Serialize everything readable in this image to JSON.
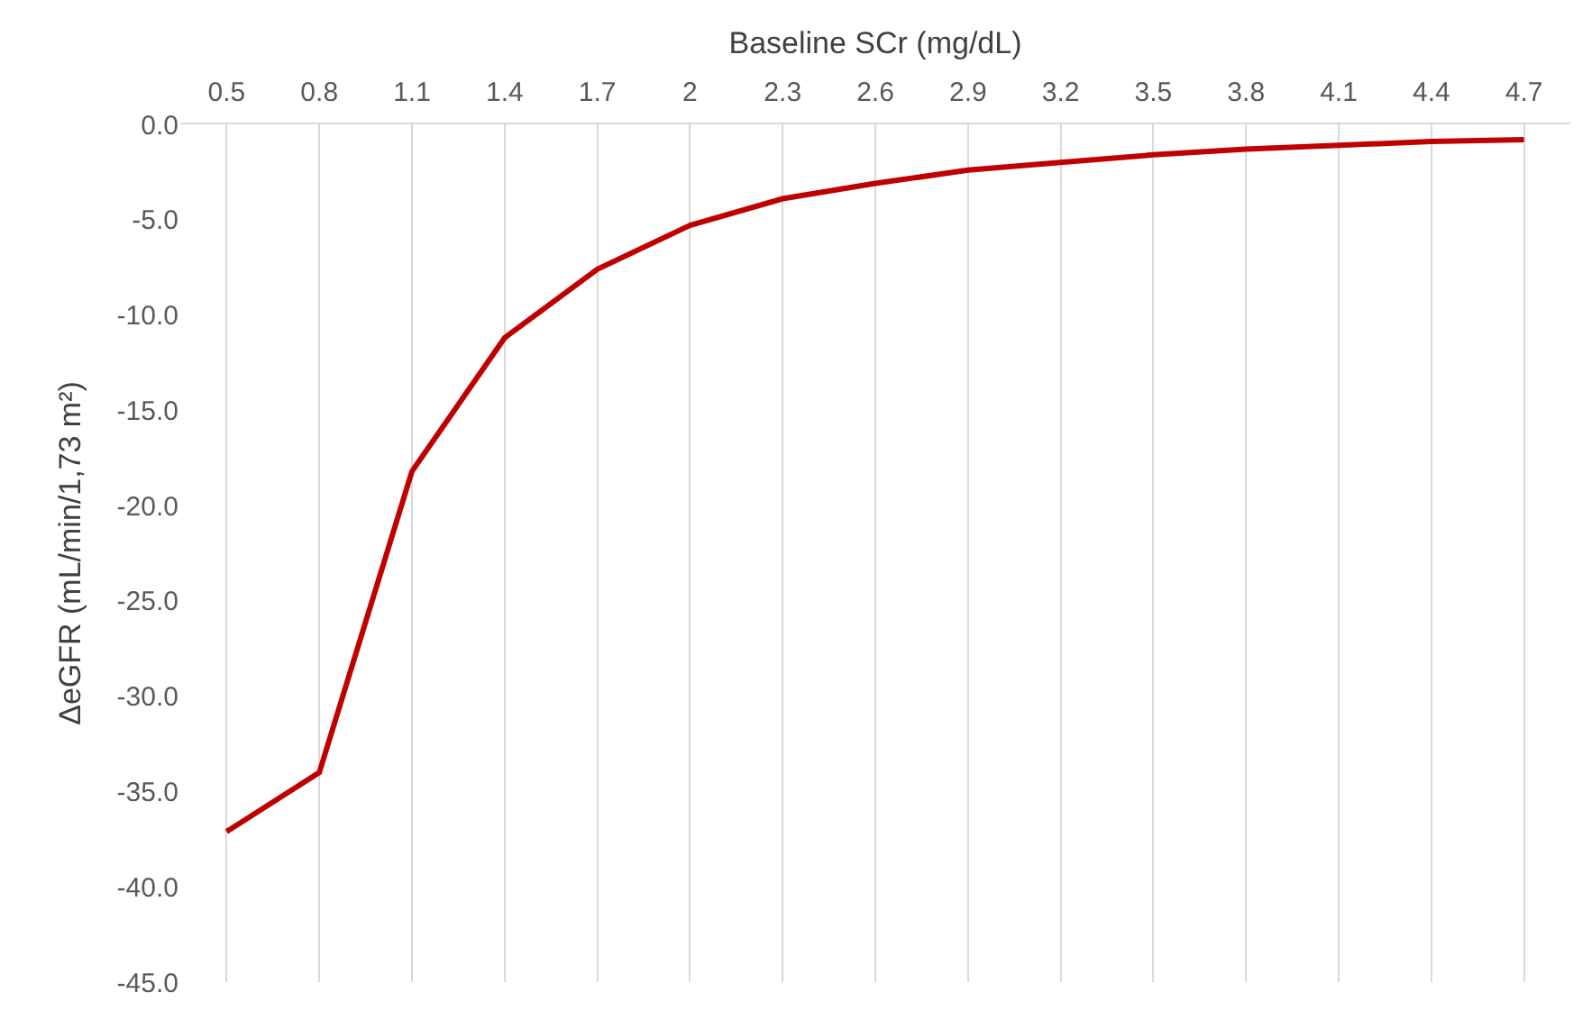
{
  "chart_data": {
    "type": "line",
    "xlabel": "Baseline SCr (mg/dL)",
    "ylabel": "ΔeGFR (mL/min/1,73 m²)",
    "categories": [
      "0.5",
      "0.8",
      "1.1",
      "1.4",
      "1.7",
      "2",
      "2.3",
      "2.6",
      "2.9",
      "3.2",
      "3.5",
      "3.8",
      "4.1",
      "4.4",
      "4.7"
    ],
    "series": [
      {
        "color": "#c00000",
        "values": [
          -37.1,
          -34.0,
          -18.2,
          -11.2,
          -7.6,
          -5.3,
          -3.9,
          -3.1,
          -2.4,
          -2.0,
          -1.6,
          -1.3,
          -1.1,
          -0.9,
          -0.8
        ]
      }
    ],
    "ylim": [
      -45,
      0
    ],
    "yticks": [
      {
        "value": 0,
        "label": "0.0"
      },
      {
        "value": -5,
        "label": "-5.0"
      },
      {
        "value": -10,
        "label": "-10.0"
      },
      {
        "value": -15,
        "label": "-15.0"
      },
      {
        "value": -20,
        "label": "-20.0"
      },
      {
        "value": -25,
        "label": "-25.0"
      },
      {
        "value": -30,
        "label": "-30.0"
      },
      {
        "value": -35,
        "label": "-35.0"
      },
      {
        "value": -40,
        "label": "-40.0"
      },
      {
        "value": -45,
        "label": "-45.0"
      }
    ],
    "grid": "x",
    "marker": "none",
    "line_style": "solid"
  }
}
